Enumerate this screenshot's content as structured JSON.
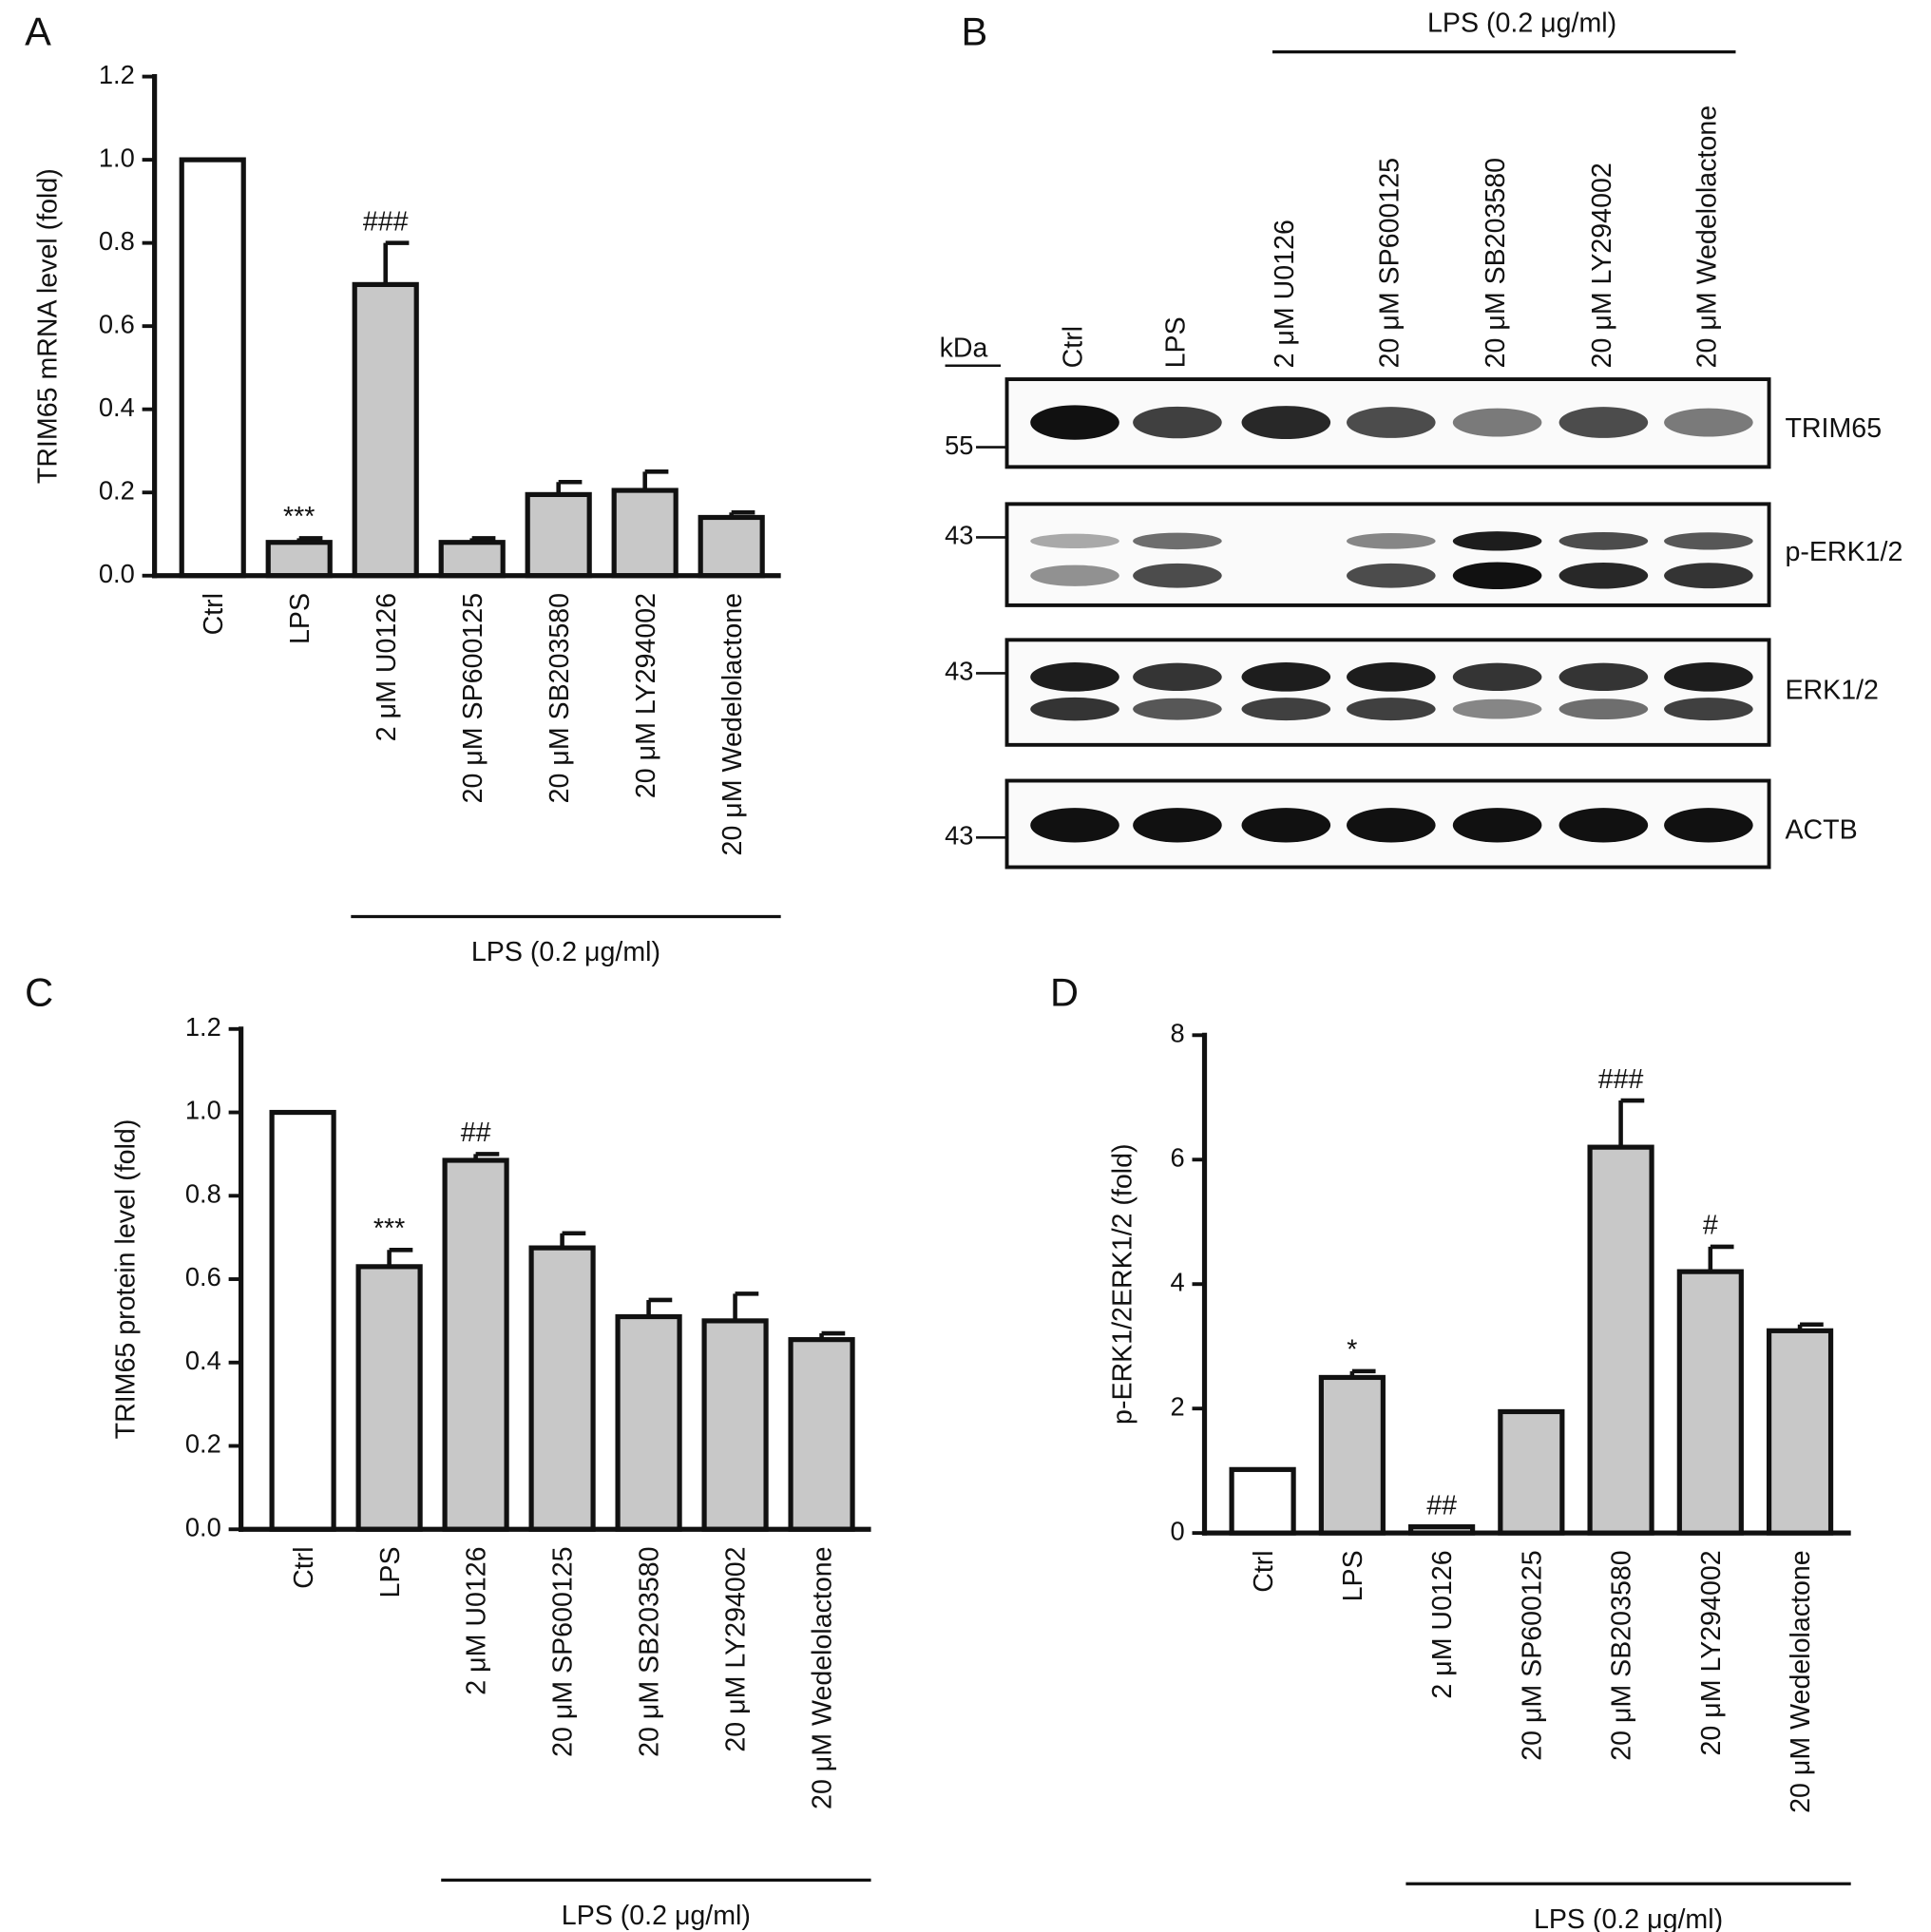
{
  "chart_data": [
    {
      "type": "bar",
      "panel_label": "A",
      "ylabel": "TRIM65 mRNA level (fold)",
      "categories": [
        "Ctrl",
        "LPS",
        "2 μM U0126",
        "20 μM SP600125",
        "20 μM SB203580",
        "20 μM LY294002",
        "20 μM Wedelolactone"
      ],
      "values": [
        1.0,
        0.08,
        0.7,
        0.08,
        0.195,
        0.205,
        0.14
      ],
      "errors": [
        null,
        0.01,
        0.1,
        0.01,
        0.03,
        0.045,
        0.012
      ],
      "annotations": [
        null,
        "***",
        "###",
        null,
        null,
        null,
        null
      ],
      "colors": [
        "#ffffff",
        "#c8c8c8",
        "#c8c8c8",
        "#c8c8c8",
        "#c8c8c8",
        "#c8c8c8",
        "#c8c8c8"
      ],
      "treatment_label": "LPS (0.2 μg/ml)",
      "ylim": [
        0,
        1.2
      ],
      "yticks": [
        {
          "value": 0,
          "label": "0.0"
        },
        {
          "value": 0.2,
          "label": "0.2"
        },
        {
          "value": 0.4,
          "label": "0.4"
        },
        {
          "value": 0.6,
          "label": "0.6"
        },
        {
          "value": 0.8,
          "label": "0.8"
        },
        {
          "value": 1,
          "label": "1.0"
        },
        {
          "value": 1.2,
          "label": "1.2"
        }
      ]
    },
    {
      "type": "bar",
      "panel_label": "C",
      "ylabel": "TRIM65 protein level (fold)",
      "categories": [
        "Ctrl",
        "LPS",
        "2 μM U0126",
        "20 μM SP600125",
        "20 μM SB203580",
        "20 μM LY294002",
        "20 μM Wedelolactone"
      ],
      "values": [
        1.0,
        0.63,
        0.885,
        0.675,
        0.51,
        0.5,
        0.455
      ],
      "errors": [
        null,
        0.04,
        0.015,
        0.035,
        0.04,
        0.065,
        0.015
      ],
      "annotations": [
        null,
        "***",
        "##",
        null,
        null,
        null,
        null
      ],
      "colors": [
        "#ffffff",
        "#c8c8c8",
        "#c8c8c8",
        "#c8c8c8",
        "#c8c8c8",
        "#c8c8c8",
        "#c8c8c8"
      ],
      "treatment_label": "LPS (0.2 μg/ml)",
      "ylim": [
        0,
        1.2
      ],
      "yticks": [
        {
          "value": 0,
          "label": "0.0"
        },
        {
          "value": 0.2,
          "label": "0.2"
        },
        {
          "value": 0.4,
          "label": "0.4"
        },
        {
          "value": 0.6,
          "label": "0.6"
        },
        {
          "value": 0.8,
          "label": "0.8"
        },
        {
          "value": 1,
          "label": "1.0"
        },
        {
          "value": 1.2,
          "label": "1.2"
        }
      ]
    },
    {
      "type": "bar",
      "panel_label": "D",
      "ylabel": "p-ERK1/2ERK1/2 (fold)",
      "categories": [
        "Ctrl",
        "LPS",
        "2 μM U0126",
        "20 μM SP600125",
        "20 μM SB203580",
        "20 μM LY294002",
        "20 μM Wedelolactone"
      ],
      "values": [
        1.02,
        2.5,
        0.1,
        1.95,
        6.2,
        4.2,
        3.25
      ],
      "errors": [
        null,
        0.1,
        null,
        null,
        0.75,
        0.4,
        0.1
      ],
      "annotations": [
        null,
        "*",
        "##",
        null,
        "###",
        "#",
        null
      ],
      "colors": [
        "#ffffff",
        "#c8c8c8",
        "#c8c8c8",
        "#c8c8c8",
        "#c8c8c8",
        "#c8c8c8",
        "#c8c8c8"
      ],
      "treatment_label": "LPS (0.2 μg/ml)",
      "ylim": [
        0,
        8
      ],
      "yticks": [
        0,
        2,
        4,
        6,
        8
      ]
    }
  ],
  "blot": {
    "panel_label": "B",
    "treatment_label": "LPS (0.2 μg/ml)",
    "unit": "kDa",
    "lanes": [
      "Ctrl",
      "LPS",
      "2 μM U0126",
      "20 μM SP600125",
      "20 μM SB203580",
      "20 μM LY294002",
      "20 μM Wedelolactone"
    ],
    "rows": [
      {
        "name": "TRIM65",
        "marker": 55
      },
      {
        "name": "p-ERK1/2",
        "marker": 43
      },
      {
        "name": "ERK1/2",
        "marker": 43
      },
      {
        "name": "ACTB",
        "marker": 43
      }
    ]
  }
}
